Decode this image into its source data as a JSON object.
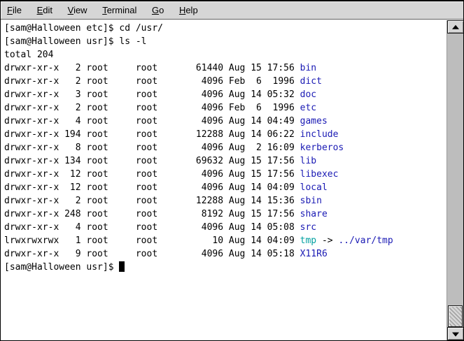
{
  "menu_bar": {
    "items": [
      "File",
      "Edit",
      "View",
      "Terminal",
      "Go",
      "Help"
    ]
  },
  "colors": {
    "directory_name": "#1a1ab4",
    "symlink_name": "#00a0a0",
    "symlink_target": "#1a1ab4",
    "terminal_text": "#000000",
    "terminal_background": "#ffffff",
    "menubar_background": "#d6d6d6"
  },
  "terminal": {
    "lines": [
      {
        "type": "command",
        "prompt": "[sam@Halloween etc]$",
        "command": "cd /usr/"
      },
      {
        "type": "command",
        "prompt": "[sam@Halloween usr]$",
        "command": "ls -l"
      },
      {
        "type": "output",
        "text": "total 204"
      },
      {
        "type": "entry",
        "perms": "drwxr-xr-x",
        "links": "2",
        "owner": "root",
        "group": "root",
        "size": "61440",
        "month": "Aug",
        "day": "15",
        "time": "17:56",
        "name": "bin",
        "kind": "dir"
      },
      {
        "type": "entry",
        "perms": "drwxr-xr-x",
        "links": "2",
        "owner": "root",
        "group": "root",
        "size": "4096",
        "month": "Feb",
        "day": "6",
        "time": "1996",
        "name": "dict",
        "kind": "dir"
      },
      {
        "type": "entry",
        "perms": "drwxr-xr-x",
        "links": "3",
        "owner": "root",
        "group": "root",
        "size": "4096",
        "month": "Aug",
        "day": "14",
        "time": "05:32",
        "name": "doc",
        "kind": "dir"
      },
      {
        "type": "entry",
        "perms": "drwxr-xr-x",
        "links": "2",
        "owner": "root",
        "group": "root",
        "size": "4096",
        "month": "Feb",
        "day": "6",
        "time": "1996",
        "name": "etc",
        "kind": "dir"
      },
      {
        "type": "entry",
        "perms": "drwxr-xr-x",
        "links": "4",
        "owner": "root",
        "group": "root",
        "size": "4096",
        "month": "Aug",
        "day": "14",
        "time": "04:49",
        "name": "games",
        "kind": "dir"
      },
      {
        "type": "entry",
        "perms": "drwxr-xr-x",
        "links": "194",
        "owner": "root",
        "group": "root",
        "size": "12288",
        "month": "Aug",
        "day": "14",
        "time": "06:22",
        "name": "include",
        "kind": "dir"
      },
      {
        "type": "entry",
        "perms": "drwxr-xr-x",
        "links": "8",
        "owner": "root",
        "group": "root",
        "size": "4096",
        "month": "Aug",
        "day": "2",
        "time": "16:09",
        "name": "kerberos",
        "kind": "dir"
      },
      {
        "type": "entry",
        "perms": "drwxr-xr-x",
        "links": "134",
        "owner": "root",
        "group": "root",
        "size": "69632",
        "month": "Aug",
        "day": "15",
        "time": "17:56",
        "name": "lib",
        "kind": "dir"
      },
      {
        "type": "entry",
        "perms": "drwxr-xr-x",
        "links": "12",
        "owner": "root",
        "group": "root",
        "size": "4096",
        "month": "Aug",
        "day": "15",
        "time": "17:56",
        "name": "libexec",
        "kind": "dir"
      },
      {
        "type": "entry",
        "perms": "drwxr-xr-x",
        "links": "12",
        "owner": "root",
        "group": "root",
        "size": "4096",
        "month": "Aug",
        "day": "14",
        "time": "04:09",
        "name": "local",
        "kind": "dir"
      },
      {
        "type": "entry",
        "perms": "drwxr-xr-x",
        "links": "2",
        "owner": "root",
        "group": "root",
        "size": "12288",
        "month": "Aug",
        "day": "14",
        "time": "15:36",
        "name": "sbin",
        "kind": "dir"
      },
      {
        "type": "entry",
        "perms": "drwxr-xr-x",
        "links": "248",
        "owner": "root",
        "group": "root",
        "size": "8192",
        "month": "Aug",
        "day": "15",
        "time": "17:56",
        "name": "share",
        "kind": "dir"
      },
      {
        "type": "entry",
        "perms": "drwxr-xr-x",
        "links": "4",
        "owner": "root",
        "group": "root",
        "size": "4096",
        "month": "Aug",
        "day": "14",
        "time": "05:08",
        "name": "src",
        "kind": "dir"
      },
      {
        "type": "entry",
        "perms": "lrwxrwxrwx",
        "links": "1",
        "owner": "root",
        "group": "root",
        "size": "10",
        "month": "Aug",
        "day": "14",
        "time": "04:09",
        "name": "tmp",
        "kind": "symlink",
        "arrow": "->",
        "target": "../var/tmp"
      },
      {
        "type": "entry",
        "perms": "drwxr-xr-x",
        "links": "9",
        "owner": "root",
        "group": "root",
        "size": "4096",
        "month": "Aug",
        "day": "14",
        "time": "05:18",
        "name": "X11R6",
        "kind": "dir"
      },
      {
        "type": "prompt",
        "prompt": "[sam@Halloween usr]$",
        "cursor": true
      }
    ]
  }
}
